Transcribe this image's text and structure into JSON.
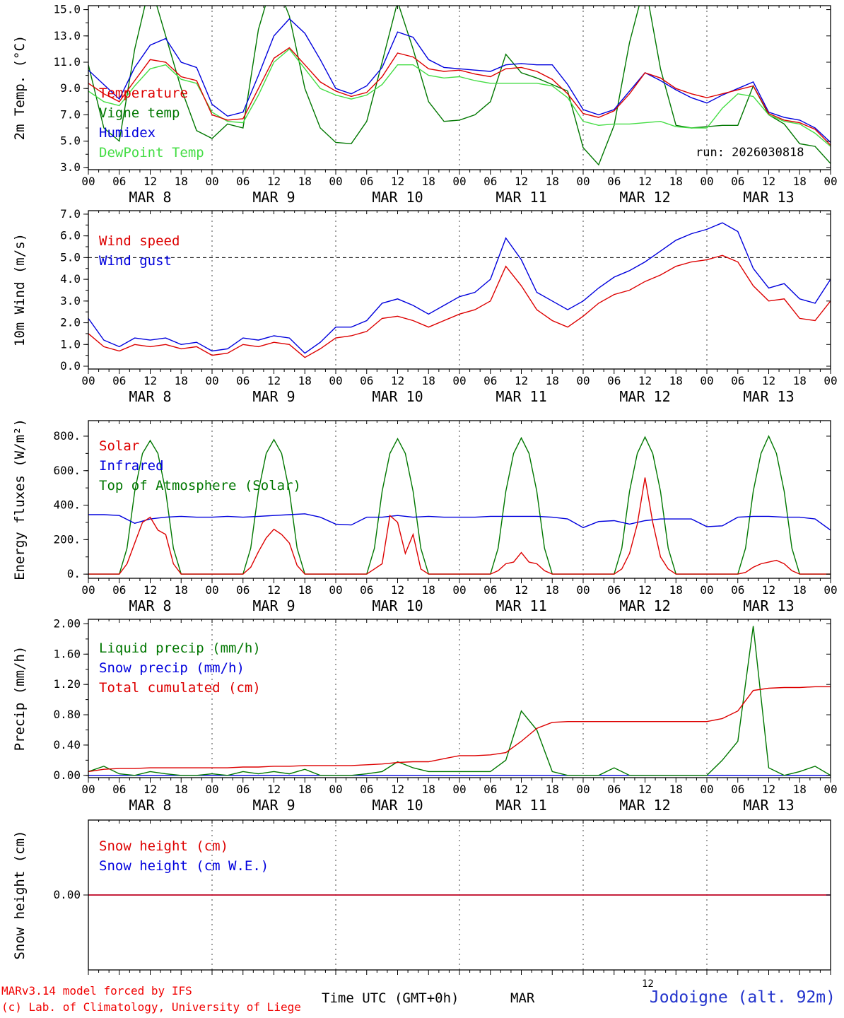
{
  "meta": {
    "run_label": "run: 2026030818"
  },
  "footer": {
    "credit1": "MARv3.14 model forced by IFS",
    "credit2": "(c) Lab. of Climatology, University of Liege",
    "time_label": "Time UTC (GMT+0h)",
    "mar_label": "MAR",
    "small_12": "12",
    "station": "Jodoigne (alt. 92m)"
  },
  "x_axis": {
    "total_hours": 144,
    "hours_step": 3,
    "major_tick_labels": [
      "00",
      "06",
      "12",
      "18"
    ],
    "day_labels": [
      "MAR  8",
      "MAR  9",
      "MAR 10",
      "MAR 11",
      "MAR 12",
      "MAR 13"
    ]
  },
  "chart_data": [
    {
      "id": "temp",
      "type": "line",
      "ylabel": "2m Temp. (°C)",
      "ylim": [
        2.83,
        15.3
      ],
      "minor_step": 1,
      "xlabels": true,
      "yticks": [
        {
          "v": 3,
          "label": "3.0"
        },
        {
          "v": 5,
          "label": "5.0"
        },
        {
          "v": 7,
          "label": "7.0"
        },
        {
          "v": 9,
          "label": "9.0"
        },
        {
          "v": 11,
          "label": "11.0"
        },
        {
          "v": 13,
          "label": "13.0"
        },
        {
          "v": 15,
          "label": "15.0"
        }
      ],
      "legend": [
        {
          "label": "Temperature",
          "color": "#dd0000"
        },
        {
          "label": "Vigne temp",
          "color": "#007700"
        },
        {
          "label": "Humidex",
          "color": "#0000dd"
        },
        {
          "label": "DewPoint Temp",
          "color": "#44dd44"
        }
      ],
      "series": [
        {
          "name": "vigne-temp",
          "color": "#007700",
          "values": [
            10.8,
            6.0,
            5.0,
            12.0,
            17.0,
            13.0,
            9.0,
            5.8,
            5.2,
            6.3,
            6.0,
            13.5,
            17.5,
            14.5,
            9.0,
            6.0,
            4.9,
            4.8,
            6.5,
            11.0,
            15.6,
            12.0,
            8.0,
            6.5,
            6.6,
            7.0,
            8.0,
            11.6,
            10.2,
            9.8,
            9.3,
            8.8,
            4.5,
            3.2,
            6.2,
            12.5,
            17.0,
            10.5,
            6.2,
            6.0,
            6.1,
            6.2,
            6.2,
            9.2,
            7.0,
            6.3,
            4.8,
            4.6,
            3.3
          ]
        },
        {
          "name": "dewpoint-temp",
          "color": "#44dd44",
          "values": [
            8.8,
            8.0,
            7.7,
            9.2,
            10.5,
            10.8,
            9.7,
            9.4,
            7.2,
            6.5,
            6.4,
            8.5,
            11.0,
            12.0,
            10.5,
            9.0,
            8.5,
            8.2,
            8.5,
            9.3,
            10.8,
            10.8,
            10.0,
            9.8,
            9.9,
            9.6,
            9.4,
            9.4,
            9.4,
            9.4,
            9.2,
            8.3,
            6.5,
            6.2,
            6.3,
            6.3,
            6.4,
            6.5,
            6.1,
            6.0,
            6.0,
            7.5,
            8.6,
            8.4,
            7.0,
            6.5,
            6.3,
            5.6,
            4.6
          ]
        },
        {
          "name": "humidex",
          "color": "#0000dd",
          "values": [
            10.4,
            9.3,
            8.2,
            10.6,
            12.3,
            12.8,
            11.0,
            10.6,
            7.8,
            6.9,
            7.2,
            10.0,
            13.0,
            14.3,
            13.2,
            11.2,
            9.0,
            8.6,
            9.2,
            10.6,
            13.3,
            12.9,
            11.2,
            10.6,
            10.5,
            10.4,
            10.3,
            10.8,
            10.9,
            10.8,
            10.8,
            9.3,
            7.4,
            7.0,
            7.4,
            8.8,
            10.2,
            9.6,
            8.9,
            8.3,
            7.9,
            8.5,
            9.0,
            9.5,
            7.2,
            6.8,
            6.6,
            6.0,
            4.9
          ]
        },
        {
          "name": "temperature",
          "color": "#dd0000",
          "values": [
            9.4,
            8.6,
            8.0,
            9.6,
            11.2,
            11.0,
            9.9,
            9.6,
            7.0,
            6.6,
            6.7,
            9.0,
            11.3,
            12.1,
            10.8,
            9.5,
            8.8,
            8.4,
            8.7,
            9.9,
            11.7,
            11.4,
            10.5,
            10.3,
            10.4,
            10.1,
            9.9,
            10.5,
            10.6,
            10.3,
            9.7,
            8.6,
            7.1,
            6.8,
            7.3,
            8.6,
            10.2,
            9.8,
            9.0,
            8.6,
            8.3,
            8.6,
            8.9,
            9.2,
            7.1,
            6.6,
            6.4,
            5.9,
            4.7
          ]
        }
      ]
    },
    {
      "id": "wind",
      "type": "line",
      "ylabel": "10m Wind (m/s)",
      "ylim": [
        -0.13,
        7.16
      ],
      "minor_step": 0.5,
      "xlabels": true,
      "hline": {
        "v": 5.0
      },
      "yticks": [
        {
          "v": 0,
          "label": "0.0"
        },
        {
          "v": 1,
          "label": "1.0"
        },
        {
          "v": 2,
          "label": "2.0"
        },
        {
          "v": 3,
          "label": "3.0"
        },
        {
          "v": 4,
          "label": "4.0"
        },
        {
          "v": 5,
          "label": "5.0"
        },
        {
          "v": 6,
          "label": "6.0"
        },
        {
          "v": 7,
          "label": "7.0"
        }
      ],
      "legend": [
        {
          "label": "Wind speed",
          "color": "#dd0000"
        },
        {
          "label": "Wind gust",
          "color": "#0000dd"
        }
      ],
      "series": [
        {
          "name": "wind-gust",
          "color": "#0000dd",
          "values": [
            2.2,
            1.2,
            0.9,
            1.3,
            1.2,
            1.3,
            1.0,
            1.1,
            0.7,
            0.8,
            1.3,
            1.2,
            1.4,
            1.3,
            0.6,
            1.1,
            1.8,
            1.8,
            2.1,
            2.9,
            3.1,
            2.8,
            2.4,
            2.8,
            3.2,
            3.4,
            4.0,
            5.9,
            4.9,
            3.4,
            3.0,
            2.6,
            3.0,
            3.6,
            4.1,
            4.4,
            4.8,
            5.3,
            5.8,
            6.1,
            6.3,
            6.6,
            6.2,
            4.5,
            3.6,
            3.8,
            3.1,
            2.9,
            4.0
          ]
        },
        {
          "name": "wind-speed",
          "color": "#dd0000",
          "values": [
            1.5,
            0.9,
            0.7,
            1.0,
            0.9,
            1.0,
            0.8,
            0.9,
            0.5,
            0.6,
            1.0,
            0.9,
            1.1,
            1.0,
            0.4,
            0.8,
            1.3,
            1.4,
            1.6,
            2.2,
            2.3,
            2.1,
            1.8,
            2.1,
            2.4,
            2.6,
            3.0,
            4.6,
            3.7,
            2.6,
            2.1,
            1.8,
            2.3,
            2.9,
            3.3,
            3.5,
            3.9,
            4.2,
            4.6,
            4.8,
            4.9,
            5.1,
            4.8,
            3.7,
            3.0,
            3.1,
            2.2,
            2.1,
            3.0
          ]
        }
      ]
    },
    {
      "id": "energy",
      "type": "line",
      "ylabel": "Energy fluxes (W/m²)",
      "ylim": [
        -24,
        890
      ],
      "minor_step": 100,
      "xlabels": true,
      "yticks": [
        {
          "v": 0,
          "label": "0."
        },
        {
          "v": 200,
          "label": "200."
        },
        {
          "v": 400,
          "label": "400."
        },
        {
          "v": 600,
          "label": "600."
        },
        {
          "v": 800,
          "label": "800."
        }
      ],
      "legend": [
        {
          "label": "Solar",
          "color": "#dd0000"
        },
        {
          "label": "Infrared",
          "color": "#0000dd"
        },
        {
          "label": "Top of Atmosphere (Solar)",
          "color": "#007700"
        }
      ],
      "series": [
        {
          "name": "toa-solar",
          "color": "#007700",
          "step": 1.5,
          "values": [
            0,
            0,
            0,
            0,
            0,
            150,
            480,
            700,
            775,
            700,
            480,
            150,
            0,
            0,
            0,
            0,
            0,
            0,
            0,
            0,
            0,
            150,
            480,
            700,
            780,
            700,
            480,
            150,
            0,
            0,
            0,
            0,
            0,
            0,
            0,
            0,
            0,
            150,
            480,
            700,
            785,
            700,
            480,
            150,
            0,
            0,
            0,
            0,
            0,
            0,
            0,
            0,
            0,
            150,
            480,
            700,
            790,
            700,
            480,
            150,
            0,
            0,
            0,
            0,
            0,
            0,
            0,
            0,
            0,
            150,
            480,
            700,
            795,
            700,
            480,
            150,
            0,
            0,
            0,
            0,
            0,
            0,
            0,
            0,
            0,
            150,
            480,
            700,
            800,
            700,
            480,
            150,
            0,
            0,
            0,
            0,
            0
          ]
        },
        {
          "name": "infrared",
          "color": "#0000dd",
          "values": [
            345,
            345,
            340,
            295,
            320,
            330,
            335,
            330,
            330,
            335,
            330,
            335,
            340,
            345,
            350,
            330,
            290,
            285,
            330,
            330,
            340,
            330,
            335,
            330,
            330,
            330,
            335,
            335,
            335,
            335,
            330,
            320,
            270,
            305,
            310,
            290,
            310,
            320,
            320,
            320,
            275,
            280,
            330,
            335,
            335,
            330,
            330,
            320,
            255
          ]
        },
        {
          "name": "solar",
          "color": "#dd0000",
          "step": 1.5,
          "values": [
            0,
            0,
            0,
            0,
            0,
            60,
            180,
            300,
            330,
            255,
            230,
            60,
            0,
            0,
            0,
            0,
            0,
            0,
            0,
            0,
            0,
            40,
            130,
            210,
            260,
            230,
            180,
            50,
            0,
            0,
            0,
            0,
            0,
            0,
            0,
            0,
            0,
            30,
            60,
            340,
            300,
            120,
            230,
            30,
            0,
            0,
            0,
            0,
            0,
            0,
            0,
            0,
            0,
            20,
            60,
            70,
            125,
            70,
            60,
            20,
            0,
            0,
            0,
            0,
            0,
            0,
            0,
            0,
            0,
            30,
            120,
            290,
            560,
            300,
            100,
            30,
            0,
            0,
            0,
            0,
            0,
            0,
            0,
            0,
            0,
            10,
            40,
            60,
            70,
            80,
            60,
            20,
            0,
            0,
            0,
            0,
            0
          ]
        }
      ]
    },
    {
      "id": "precip",
      "type": "line",
      "ylabel": "Precip (mm/h)",
      "ylim": [
        -0.03,
        2.06
      ],
      "minor_step": 0.2,
      "xlabels": true,
      "yticks": [
        {
          "v": 0,
          "label": "0.00"
        },
        {
          "v": 0.4,
          "label": "0.40"
        },
        {
          "v": 0.8,
          "label": "0.80"
        },
        {
          "v": 1.2,
          "label": "1.20"
        },
        {
          "v": 1.6,
          "label": "1.60"
        },
        {
          "v": 2.0,
          "label": "2.00"
        }
      ],
      "legend": [
        {
          "label": "Liquid precip (mm/h)",
          "color": "#007700"
        },
        {
          "label": "Snow precip (mm/h)",
          "color": "#0000dd"
        },
        {
          "label": "Total cumulated (cm)",
          "color": "#dd0000"
        }
      ],
      "series": [
        {
          "name": "snow-precip",
          "color": "#0000dd",
          "values": [
            0,
            0,
            0,
            0,
            0,
            0,
            0,
            0,
            0,
            0,
            0,
            0,
            0,
            0,
            0,
            0,
            0,
            0,
            0,
            0,
            0,
            0,
            0,
            0,
            0,
            0,
            0,
            0,
            0,
            0,
            0,
            0,
            0,
            0,
            0,
            0,
            0,
            0,
            0,
            0,
            0,
            0,
            0,
            0,
            0,
            0,
            0,
            0,
            0
          ]
        },
        {
          "name": "liquid-precip",
          "color": "#007700",
          "values": [
            0.05,
            0.12,
            0.02,
            0,
            0.05,
            0.02,
            0,
            0,
            0.02,
            0,
            0.05,
            0.02,
            0.05,
            0.02,
            0.08,
            0,
            0,
            0,
            0.02,
            0.05,
            0.18,
            0.1,
            0.05,
            0.05,
            0.05,
            0.05,
            0.05,
            0.2,
            0.85,
            0.6,
            0.05,
            0,
            0,
            0,
            0.1,
            0,
            0,
            0,
            0,
            0,
            0,
            0.2,
            0.45,
            1.97,
            0.1,
            0,
            0.05,
            0.12,
            0
          ]
        },
        {
          "name": "total-cumulated",
          "color": "#dd0000",
          "values": [
            0.05,
            0.08,
            0.09,
            0.09,
            0.1,
            0.1,
            0.1,
            0.1,
            0.1,
            0.1,
            0.11,
            0.11,
            0.12,
            0.12,
            0.13,
            0.13,
            0.13,
            0.13,
            0.14,
            0.15,
            0.17,
            0.18,
            0.18,
            0.22,
            0.26,
            0.26,
            0.27,
            0.3,
            0.45,
            0.62,
            0.7,
            0.71,
            0.71,
            0.71,
            0.71,
            0.71,
            0.71,
            0.71,
            0.71,
            0.71,
            0.71,
            0.75,
            0.85,
            1.12,
            1.15,
            1.16,
            1.16,
            1.17,
            1.17
          ]
        }
      ]
    },
    {
      "id": "snow",
      "type": "line",
      "ylabel": "Snow height (cm)",
      "ylim": [
        -1.0,
        1.0
      ],
      "minor_step": null,
      "xlabels": false,
      "yticks": [
        {
          "v": 0,
          "label": "0.00"
        }
      ],
      "legend": [
        {
          "label": "Snow height (cm)",
          "color": "#dd0000"
        },
        {
          "label": "Snow height (cm W.E.)",
          "color": "#0000dd"
        }
      ],
      "series": [
        {
          "name": "snow-height-we",
          "color": "#0000dd",
          "values": [
            0,
            0,
            0,
            0,
            0,
            0,
            0,
            0,
            0,
            0,
            0,
            0,
            0,
            0,
            0,
            0,
            0,
            0,
            0,
            0,
            0,
            0,
            0,
            0,
            0,
            0,
            0,
            0,
            0,
            0,
            0,
            0,
            0,
            0,
            0,
            0,
            0,
            0,
            0,
            0,
            0,
            0,
            0,
            0,
            0,
            0,
            0,
            0,
            0
          ]
        },
        {
          "name": "snow-height",
          "color": "#dd0000",
          "values": [
            0,
            0,
            0,
            0,
            0,
            0,
            0,
            0,
            0,
            0,
            0,
            0,
            0,
            0,
            0,
            0,
            0,
            0,
            0,
            0,
            0,
            0,
            0,
            0,
            0,
            0,
            0,
            0,
            0,
            0,
            0,
            0,
            0,
            0,
            0,
            0,
            0,
            0,
            0,
            0,
            0,
            0,
            0,
            0,
            0,
            0,
            0,
            0,
            0
          ]
        }
      ]
    }
  ]
}
